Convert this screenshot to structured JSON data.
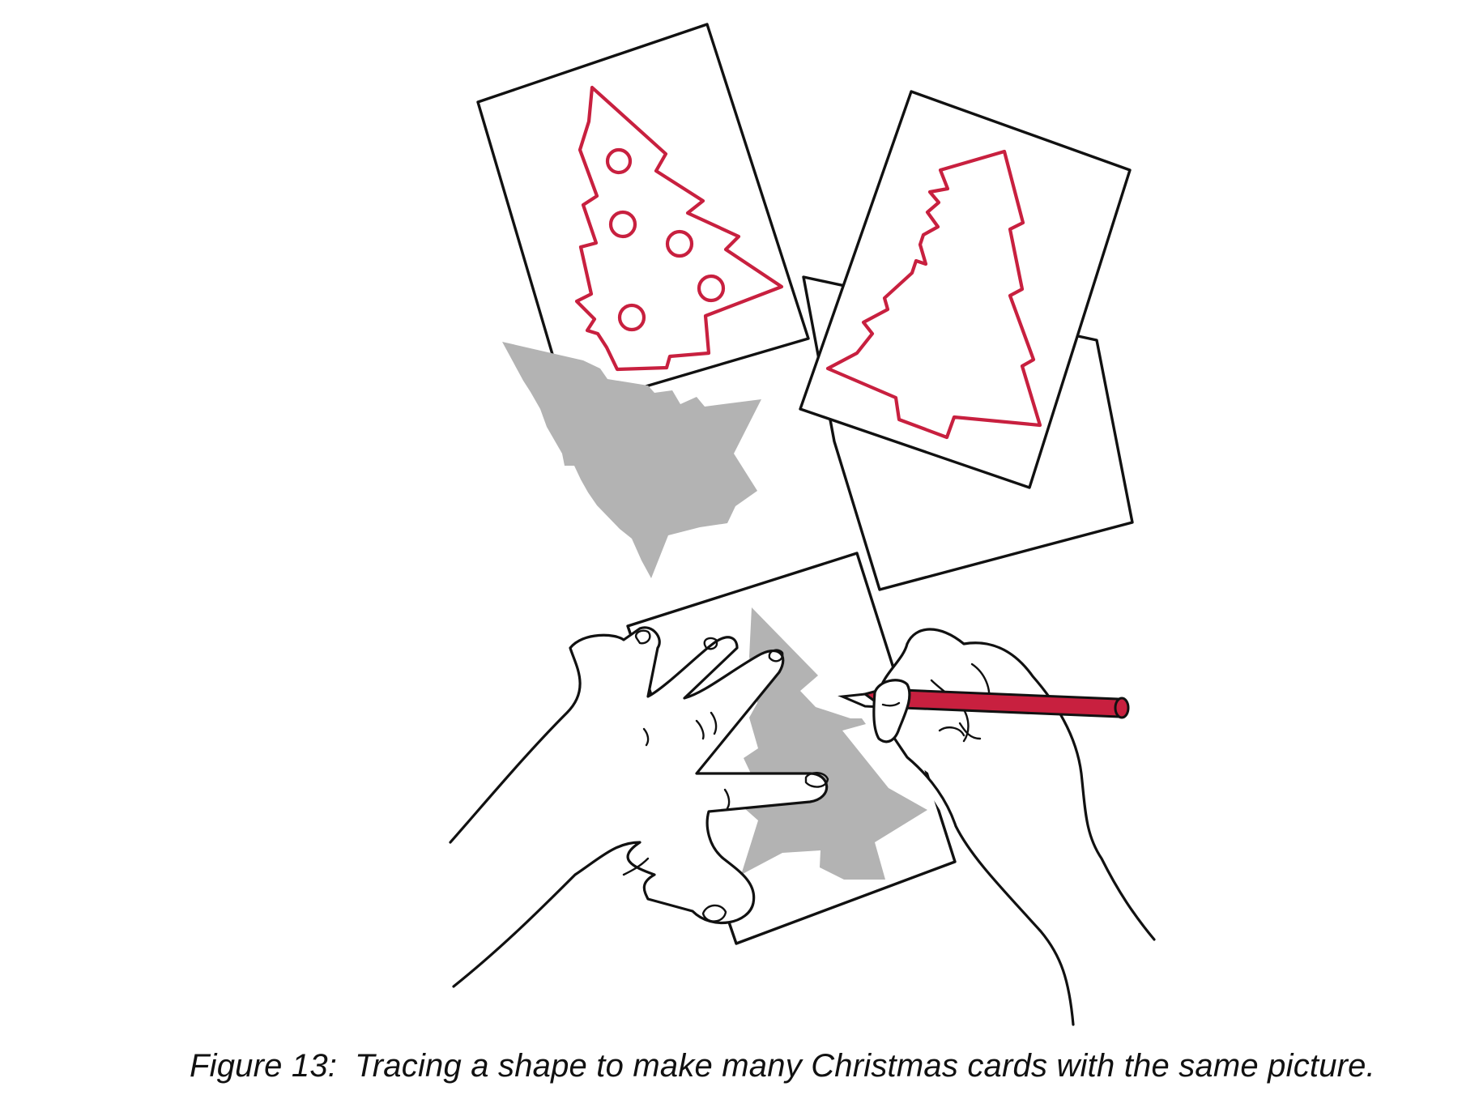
{
  "figure": {
    "label": "Figure 13:",
    "caption": "Tracing a shape to make many Christmas cards with the same picture."
  },
  "colors": {
    "ink": "#111111",
    "red": "#c8203f",
    "template_gray": "#b3b3b3",
    "paper": "#ffffff"
  }
}
